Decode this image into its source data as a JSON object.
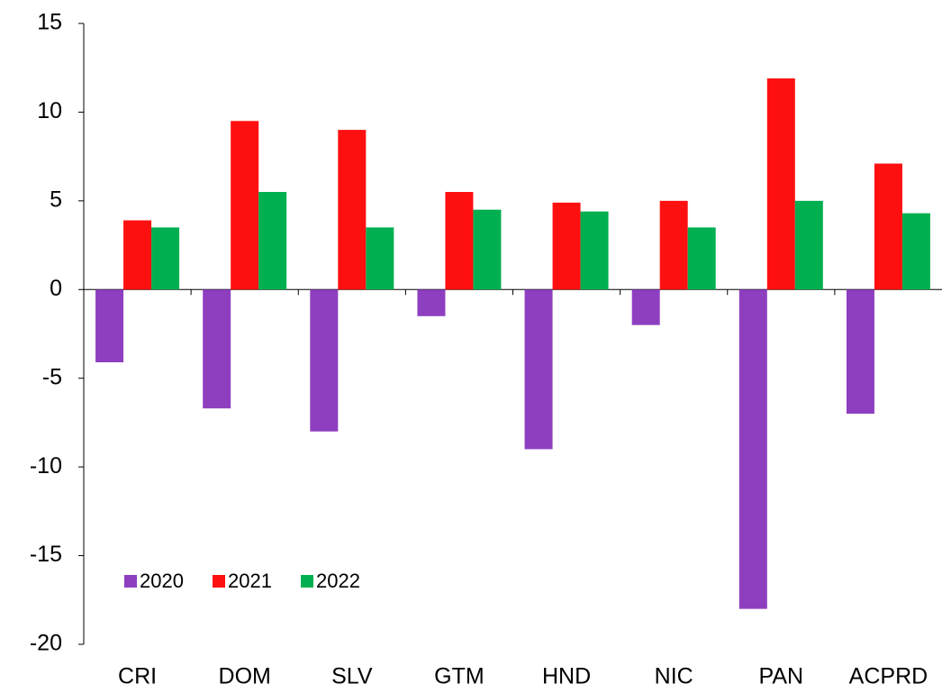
{
  "chart_data": {
    "type": "bar",
    "categories": [
      "CRI",
      "DOM",
      "SLV",
      "GTM",
      "HND",
      "NIC",
      "PAN",
      "ACPRD"
    ],
    "series": [
      {
        "name": "2020",
        "color": "#8e3fc0",
        "values": [
          -4.1,
          -6.7,
          -8.0,
          -1.5,
          -9.0,
          -2.0,
          -18.0,
          -7.0
        ]
      },
      {
        "name": "2021",
        "color": "#ff1010",
        "values": [
          3.9,
          9.5,
          9.0,
          5.5,
          4.9,
          5.0,
          11.9,
          7.1
        ]
      },
      {
        "name": "2022",
        "color": "#00b050",
        "values": [
          3.5,
          5.5,
          3.5,
          4.5,
          4.4,
          3.5,
          5.0,
          4.3
        ]
      }
    ],
    "ylim": [
      -20,
      15
    ],
    "yticks": [
      -20,
      -15,
      -10,
      -5,
      0,
      5,
      10,
      15
    ],
    "grid": false,
    "legend": "lower left"
  }
}
